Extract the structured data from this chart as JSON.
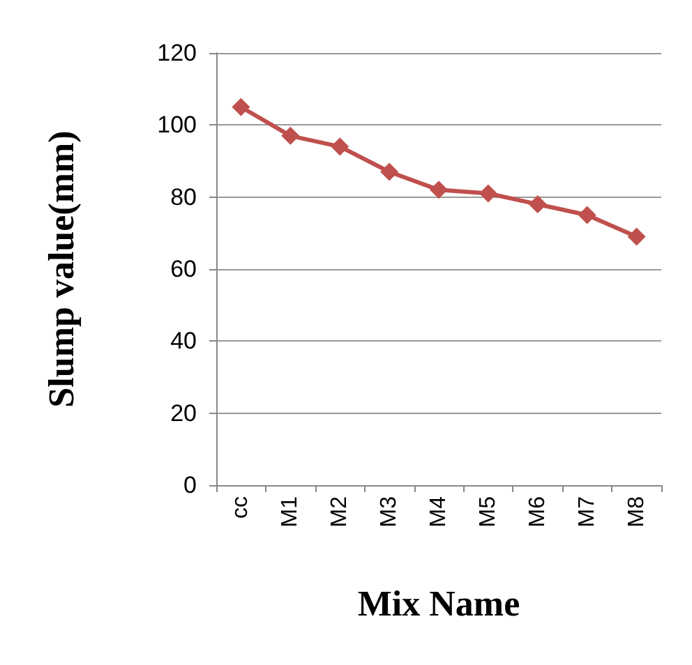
{
  "chart_data": {
    "type": "line",
    "xlabel": "Mix Name",
    "ylabel": "Slump value(mm)",
    "categories": [
      "cc",
      "M1",
      "M2",
      "M3",
      "M4",
      "M5",
      "M6",
      "M7",
      "M8"
    ],
    "series": [
      {
        "color": "#c0504d",
        "values": [
          105,
          97,
          94,
          87,
          82,
          81,
          78,
          75,
          69
        ]
      }
    ],
    "ylim": [
      0,
      120
    ],
    "yticks": [
      0,
      20,
      40,
      60,
      80,
      100,
      120
    ],
    "grid": "y",
    "marker": "diamond",
    "line_style": "solid"
  }
}
